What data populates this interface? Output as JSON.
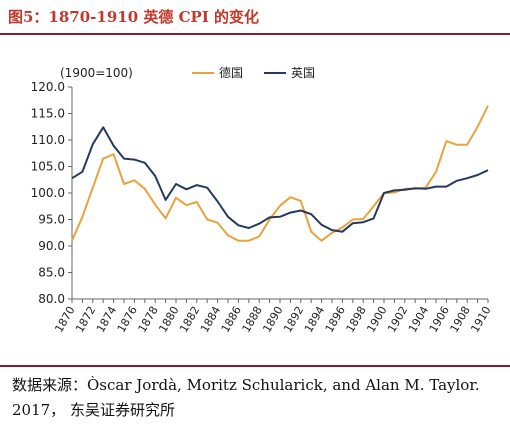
{
  "figure": {
    "title": "图5：1870-1910 英德 CPI 的变化",
    "source": "数据来源：Òscar Jordà, Moritz Schularick, and Alan M. Taylor. 2017， 东吴证券研究所"
  },
  "chart_data": {
    "type": "line",
    "title": "",
    "unit_note": "(1900=100)",
    "xlabel": "",
    "ylabel": "",
    "x": [
      1870,
      1871,
      1872,
      1873,
      1874,
      1875,
      1876,
      1877,
      1878,
      1879,
      1880,
      1881,
      1882,
      1883,
      1884,
      1885,
      1886,
      1887,
      1888,
      1889,
      1890,
      1891,
      1892,
      1893,
      1894,
      1895,
      1896,
      1897,
      1898,
      1899,
      1900,
      1901,
      1902,
      1903,
      1904,
      1905,
      1906,
      1907,
      1908,
      1909,
      1910
    ],
    "x_tick_labels": [
      "1870",
      "1872",
      "1874",
      "1876",
      "1878",
      "1880",
      "1882",
      "1884",
      "1886",
      "1888",
      "1890",
      "1892",
      "1894",
      "1896",
      "1898",
      "1900",
      "1902",
      "1904",
      "1906",
      "1908",
      "1910"
    ],
    "y_tick_labels": [
      "80.0",
      "85.0",
      "90.0",
      "95.0",
      "100.0",
      "105.0",
      "110.0",
      "115.0",
      "120.0"
    ],
    "ylim": [
      80,
      120
    ],
    "grid": false,
    "legend_position": "top-center",
    "series": [
      {
        "name": "德国",
        "color": "#e8a33d",
        "values": [
          91.0,
          95.5,
          101.0,
          106.5,
          107.3,
          101.7,
          102.4,
          100.8,
          97.8,
          95.2,
          99.1,
          97.7,
          98.3,
          95.0,
          94.4,
          92.0,
          91.0,
          91.0,
          91.8,
          95.0,
          97.6,
          99.2,
          98.5,
          92.7,
          91.0,
          92.5,
          93.5,
          95.0,
          95.1,
          97.5,
          100.0,
          100.1,
          100.8,
          100.8,
          101.0,
          104.0,
          109.8,
          109.1,
          109.1,
          112.5,
          116.5
        ]
      },
      {
        "name": "英国",
        "color": "#243a5e",
        "values": [
          102.8,
          104.0,
          109.2,
          112.4,
          108.9,
          106.5,
          106.3,
          105.7,
          103.2,
          98.7,
          101.7,
          100.7,
          101.5,
          101.0,
          98.4,
          95.5,
          93.9,
          93.4,
          94.2,
          95.4,
          95.5,
          96.3,
          96.7,
          96.0,
          94.0,
          93.0,
          92.7,
          94.3,
          94.5,
          95.2,
          100.0,
          100.5,
          100.6,
          100.9,
          100.8,
          101.2,
          101.2,
          102.3,
          102.8,
          103.4,
          104.3
        ]
      }
    ]
  }
}
